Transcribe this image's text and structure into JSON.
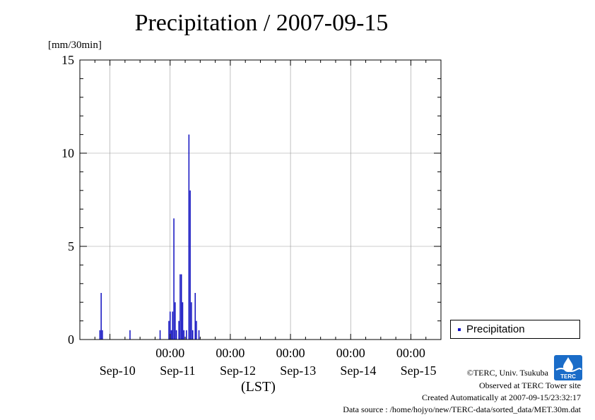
{
  "header": {
    "title": "Precipitation / 2007-09-15",
    "y_unit": "[mm/30min]",
    "x_unit": "(LST)"
  },
  "legend": {
    "label": "Precipitation"
  },
  "footer": {
    "copyright": "©TERC, Univ. Tsukuba",
    "site": "Observed at TERC Tower site",
    "created": "Created Automatically at 2007-09-15/23:32:17",
    "source": "Data source : /home/hojyo/new/TERC-data/sorted_data/MET.30m.dat"
  },
  "logo": {
    "text": "TERC",
    "icon": "terc-logo-icon"
  },
  "colors": {
    "series": "#1010c0",
    "grid": "#999999",
    "axis": "#000000",
    "logo": "#1a6cc8"
  },
  "chart_data": {
    "type": "bar",
    "title": "Precipitation / 2007-09-15",
    "ylabel": "[mm/30min]",
    "xlabel": "(LST)",
    "ylim": [
      0,
      15
    ],
    "yticks": [
      0,
      5,
      10,
      15
    ],
    "xlim": [
      "2007-09-09 12:00",
      "2007-09-15 12:00"
    ],
    "xtick_time_labels": [
      "00:00",
      "00:00",
      "00:00",
      "00:00",
      "00:00"
    ],
    "xtick_date_labels": [
      "Sep-10",
      "Sep-11",
      "Sep-12",
      "Sep-13",
      "Sep-14",
      "Sep-15"
    ],
    "grid": true,
    "legend_position": "right",
    "series": [
      {
        "name": "Precipitation",
        "points": [
          {
            "x": "2007-09-09 20:00",
            "y": 0.5
          },
          {
            "x": "2007-09-09 20:30",
            "y": 2.5
          },
          {
            "x": "2007-09-09 21:00",
            "y": 0.5
          },
          {
            "x": "2007-09-10 08:00",
            "y": 0.5
          },
          {
            "x": "2007-09-10 20:00",
            "y": 0.5
          },
          {
            "x": "2007-09-10 23:30",
            "y": 1.0
          },
          {
            "x": "2007-09-11 00:00",
            "y": 1.5
          },
          {
            "x": "2007-09-11 00:30",
            "y": 0.5
          },
          {
            "x": "2007-09-11 01:00",
            "y": 1.5
          },
          {
            "x": "2007-09-11 01:30",
            "y": 6.5
          },
          {
            "x": "2007-09-11 02:00",
            "y": 2.0
          },
          {
            "x": "2007-09-11 02:30",
            "y": 0.5
          },
          {
            "x": "2007-09-11 03:30",
            "y": 1.0
          },
          {
            "x": "2007-09-11 04:00",
            "y": 3.5
          },
          {
            "x": "2007-09-11 04:30",
            "y": 3.5
          },
          {
            "x": "2007-09-11 05:00",
            "y": 2.0
          },
          {
            "x": "2007-09-11 05:30",
            "y": 0.5
          },
          {
            "x": "2007-09-11 06:30",
            "y": 0.5
          },
          {
            "x": "2007-09-11 07:30",
            "y": 11.0
          },
          {
            "x": "2007-09-11 08:00",
            "y": 8.0
          },
          {
            "x": "2007-09-11 08:30",
            "y": 2.0
          },
          {
            "x": "2007-09-11 09:00",
            "y": 0.5
          },
          {
            "x": "2007-09-11 10:00",
            "y": 2.5
          },
          {
            "x": "2007-09-11 10:30",
            "y": 1.0
          },
          {
            "x": "2007-09-11 11:30",
            "y": 0.5
          }
        ]
      }
    ]
  }
}
